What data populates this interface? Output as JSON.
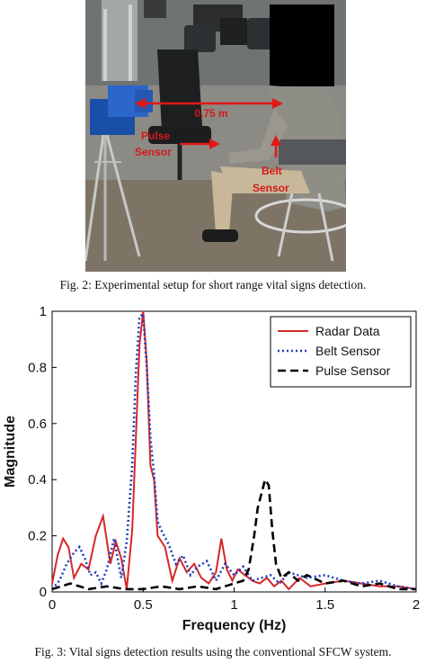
{
  "figure2": {
    "caption": "Fig. 2: Experimental setup for short range vital signs detection.",
    "labels": {
      "distance": "0.75 m",
      "pulse_line1": "Pulse",
      "pulse_line2": "Sensor",
      "belt_line1": "Belt",
      "belt_line2": "Sensor"
    }
  },
  "figure3": {
    "caption": "Fig. 3: Vital signs detection results using the conventional SFCW system."
  },
  "chart_data": {
    "type": "line",
    "xlabel": "Frequency (Hz)",
    "ylabel": "Magnitude",
    "xlim": [
      0,
      2
    ],
    "ylim": [
      0,
      1
    ],
    "xticks": [
      "0",
      "0.5",
      "1",
      "1.5",
      "2"
    ],
    "yticks": [
      "0",
      "0.2",
      "0.4",
      "0.6",
      "0.8",
      "1"
    ],
    "legend_position": "top-right",
    "series": [
      {
        "name": "Radar Data",
        "color": "#d62728",
        "style": "solid",
        "x": [
          0,
          0.03,
          0.06,
          0.09,
          0.12,
          0.16,
          0.2,
          0.24,
          0.28,
          0.32,
          0.35,
          0.38,
          0.41,
          0.44,
          0.46,
          0.48,
          0.5,
          0.52,
          0.54,
          0.56,
          0.58,
          0.62,
          0.66,
          0.7,
          0.74,
          0.78,
          0.82,
          0.86,
          0.9,
          0.93,
          0.96,
          0.99,
          1.02,
          1.06,
          1.1,
          1.14,
          1.18,
          1.22,
          1.26,
          1.3,
          1.36,
          1.42,
          1.5,
          1.6,
          1.7,
          1.8,
          1.9,
          2.0
        ],
        "y": [
          0.03,
          0.13,
          0.19,
          0.16,
          0.05,
          0.1,
          0.08,
          0.2,
          0.27,
          0.1,
          0.18,
          0.12,
          0.01,
          0.22,
          0.55,
          0.88,
          1.0,
          0.82,
          0.45,
          0.4,
          0.2,
          0.16,
          0.04,
          0.12,
          0.07,
          0.1,
          0.05,
          0.03,
          0.07,
          0.19,
          0.08,
          0.04,
          0.08,
          0.06,
          0.04,
          0.03,
          0.05,
          0.02,
          0.04,
          0.01,
          0.05,
          0.02,
          0.03,
          0.04,
          0.03,
          0.02,
          0.02,
          0.01
        ]
      },
      {
        "name": "Belt Sensor",
        "color": "#1f3fbf",
        "style": "dotted",
        "x": [
          0,
          0.04,
          0.08,
          0.12,
          0.15,
          0.18,
          0.21,
          0.24,
          0.27,
          0.3,
          0.34,
          0.38,
          0.41,
          0.44,
          0.46,
          0.48,
          0.5,
          0.52,
          0.54,
          0.56,
          0.58,
          0.6,
          0.64,
          0.68,
          0.72,
          0.76,
          0.8,
          0.85,
          0.9,
          0.95,
          1.0,
          1.05,
          1.1,
          1.15,
          1.2,
          1.25,
          1.3,
          1.4,
          1.5,
          1.6,
          1.7,
          1.8,
          1.9,
          2.0
        ],
        "y": [
          0.01,
          0.04,
          0.1,
          0.14,
          0.16,
          0.12,
          0.06,
          0.07,
          0.03,
          0.08,
          0.19,
          0.05,
          0.18,
          0.45,
          0.78,
          0.98,
          0.99,
          0.8,
          0.55,
          0.42,
          0.25,
          0.22,
          0.17,
          0.1,
          0.13,
          0.06,
          0.09,
          0.11,
          0.04,
          0.1,
          0.06,
          0.09,
          0.04,
          0.05,
          0.06,
          0.03,
          0.07,
          0.05,
          0.06,
          0.04,
          0.03,
          0.04,
          0.02,
          0.01
        ]
      },
      {
        "name": "Pulse Sensor",
        "color": "#000000",
        "style": "dashed",
        "x": [
          0,
          0.05,
          0.1,
          0.15,
          0.2,
          0.3,
          0.4,
          0.5,
          0.6,
          0.7,
          0.8,
          0.9,
          1.0,
          1.05,
          1.08,
          1.11,
          1.13,
          1.15,
          1.17,
          1.19,
          1.21,
          1.23,
          1.26,
          1.3,
          1.35,
          1.4,
          1.5,
          1.6,
          1.7,
          1.8,
          1.9,
          2.0
        ],
        "y": [
          0.01,
          0.02,
          0.03,
          0.02,
          0.01,
          0.02,
          0.01,
          0.01,
          0.02,
          0.01,
          0.02,
          0.01,
          0.03,
          0.04,
          0.08,
          0.2,
          0.3,
          0.35,
          0.4,
          0.38,
          0.22,
          0.1,
          0.05,
          0.07,
          0.04,
          0.06,
          0.03,
          0.04,
          0.02,
          0.03,
          0.01,
          0.01
        ]
      }
    ]
  }
}
